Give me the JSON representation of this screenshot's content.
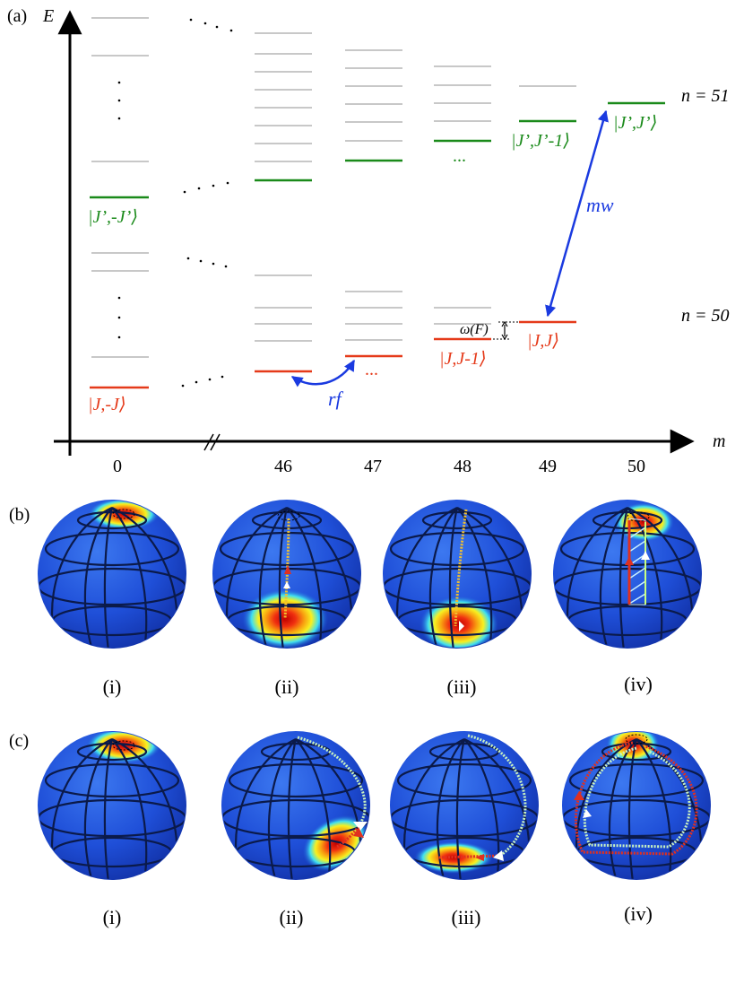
{
  "panel_a": {
    "panel_label": "(a)",
    "e_axis_label": "E",
    "m_axis_label": "m",
    "m_ticks": [
      "0",
      "46",
      "47",
      "48",
      "49",
      "50"
    ],
    "n_upper": "n = 51",
    "n_lower": "n = 50",
    "states": {
      "upper_left": "|J’,-J’⟩",
      "upper_49": "|J’,J’-1⟩",
      "upper_50": "|J’,J’⟩",
      "lower_left": "|J,-J⟩",
      "lower_48": "|J,J-1⟩",
      "lower_49": "|J,J⟩"
    },
    "ellipsis": "...",
    "rf_label": "rf",
    "mw_label": "mw",
    "omega_label": "ω(F)",
    "colors": {
      "upper": "#1a8a1a",
      "lower": "#e53a1a",
      "transition": "#1a3ae0",
      "grey": "#a8a8a8"
    }
  },
  "panel_b": {
    "panel_label": "(b)",
    "sub_labels": [
      "(i)",
      "(ii)",
      "(iii)",
      "(iv)"
    ]
  },
  "panel_c": {
    "panel_label": "(c)",
    "sub_labels": [
      "(i)",
      "(ii)",
      "(iii)",
      "(iv)"
    ]
  },
  "sphere_colors": {
    "base": "#1f4fd8",
    "hot_inner": "#e02010",
    "hot_mid": "#f8e020",
    "hot_outer": "#2ad0f0"
  }
}
